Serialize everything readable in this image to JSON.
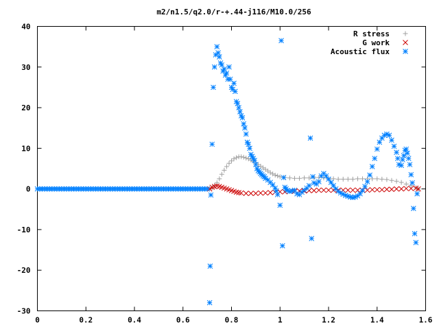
{
  "chart_data": {
    "type": "scatter",
    "title": "m2/n1.5/q2.0/r-+.44-j116/M10.0/256",
    "xlabel": "",
    "ylabel": "",
    "xlim": [
      0,
      1.6
    ],
    "ylim": [
      -30,
      40
    ],
    "x_ticks": [
      0,
      0.2,
      0.4,
      0.6,
      0.8,
      1,
      1.2,
      1.4,
      1.6
    ],
    "x_tick_labels": [
      "0",
      "0.2",
      "0.4",
      "0.6",
      "0.8",
      "1",
      "1.2",
      "1.4",
      "1.6"
    ],
    "y_ticks": [
      -30,
      -20,
      -10,
      0,
      10,
      20,
      30,
      40
    ],
    "y_tick_labels": [
      "-30",
      "-20",
      "-10",
      "0",
      "10",
      "20",
      "30",
      "40"
    ],
    "grid": false,
    "legend_position": "top-right",
    "series": [
      {
        "name": "R stress",
        "marker": "plus",
        "color": "#a0a0a0",
        "points": [
          [
            0.71,
            0
          ],
          [
            0.72,
            0.3
          ],
          [
            0.73,
            0.8
          ],
          [
            0.74,
            1.5
          ],
          [
            0.75,
            2.5
          ],
          [
            0.76,
            3.6
          ],
          [
            0.77,
            4.6
          ],
          [
            0.78,
            5.5
          ],
          [
            0.79,
            6.3
          ],
          [
            0.8,
            6.9
          ],
          [
            0.81,
            7.4
          ],
          [
            0.82,
            7.7
          ],
          [
            0.83,
            7.9
          ],
          [
            0.84,
            7.9
          ],
          [
            0.85,
            7.8
          ],
          [
            0.86,
            7.6
          ],
          [
            0.87,
            7.4
          ],
          [
            0.88,
            7.1
          ],
          [
            0.89,
            6.8
          ],
          [
            0.9,
            6.4
          ],
          [
            0.91,
            6.0
          ],
          [
            0.92,
            5.6
          ],
          [
            0.93,
            5.2
          ],
          [
            0.94,
            4.8
          ],
          [
            0.95,
            4.4
          ],
          [
            0.96,
            4.0
          ],
          [
            0.97,
            3.7
          ],
          [
            0.98,
            3.4
          ],
          [
            0.99,
            3.2
          ],
          [
            1.0,
            3.0
          ],
          [
            1.02,
            2.8
          ],
          [
            1.04,
            2.7
          ],
          [
            1.06,
            2.6
          ],
          [
            1.08,
            2.6
          ],
          [
            1.1,
            2.7
          ],
          [
            1.12,
            2.7
          ],
          [
            1.14,
            2.8
          ],
          [
            1.16,
            2.8
          ],
          [
            1.18,
            2.7
          ],
          [
            1.2,
            2.6
          ],
          [
            1.22,
            2.5
          ],
          [
            1.24,
            2.4
          ],
          [
            1.26,
            2.4
          ],
          [
            1.28,
            2.4
          ],
          [
            1.3,
            2.4
          ],
          [
            1.32,
            2.5
          ],
          [
            1.34,
            2.5
          ],
          [
            1.36,
            2.5
          ],
          [
            1.38,
            2.5
          ],
          [
            1.4,
            2.5
          ],
          [
            1.42,
            2.4
          ],
          [
            1.44,
            2.3
          ],
          [
            1.46,
            2.1
          ],
          [
            1.48,
            1.9
          ],
          [
            1.5,
            1.6
          ],
          [
            1.52,
            1.2
          ],
          [
            1.54,
            0.8
          ],
          [
            1.56,
            0.3
          ],
          [
            1.57,
            0
          ]
        ]
      },
      {
        "name": "G work",
        "marker": "cross",
        "color": "#cc0000",
        "points": [
          [
            0.71,
            0
          ],
          [
            0.72,
            0.4
          ],
          [
            0.73,
            0.6
          ],
          [
            0.74,
            0.7
          ],
          [
            0.75,
            0.6
          ],
          [
            0.76,
            0.4
          ],
          [
            0.77,
            0.2
          ],
          [
            0.78,
            0
          ],
          [
            0.79,
            -0.2
          ],
          [
            0.8,
            -0.4
          ],
          [
            0.81,
            -0.6
          ],
          [
            0.82,
            -0.8
          ],
          [
            0.83,
            -0.9
          ],
          [
            0.84,
            -1.0
          ],
          [
            0.86,
            -1.1
          ],
          [
            0.88,
            -1.1
          ],
          [
            0.9,
            -1.1
          ],
          [
            0.92,
            -1.0
          ],
          [
            0.94,
            -1.0
          ],
          [
            0.96,
            -0.9
          ],
          [
            0.98,
            -0.8
          ],
          [
            1.0,
            -0.7
          ],
          [
            1.02,
            -0.7
          ],
          [
            1.04,
            -0.6
          ],
          [
            1.06,
            -0.6
          ],
          [
            1.08,
            -0.5
          ],
          [
            1.1,
            -0.5
          ],
          [
            1.12,
            -0.4
          ],
          [
            1.14,
            -0.4
          ],
          [
            1.16,
            -0.3
          ],
          [
            1.18,
            -0.3
          ],
          [
            1.2,
            -0.3
          ],
          [
            1.22,
            -0.3
          ],
          [
            1.24,
            -0.3
          ],
          [
            1.26,
            -0.3
          ],
          [
            1.28,
            -0.3
          ],
          [
            1.3,
            -0.3
          ],
          [
            1.32,
            -0.3
          ],
          [
            1.34,
            -0.3
          ],
          [
            1.36,
            -0.3
          ],
          [
            1.38,
            -0.2
          ],
          [
            1.4,
            -0.2
          ],
          [
            1.42,
            -0.2
          ],
          [
            1.44,
            -0.1
          ],
          [
            1.46,
            -0.1
          ],
          [
            1.48,
            0
          ],
          [
            1.5,
            0
          ],
          [
            1.52,
            0.1
          ],
          [
            1.54,
            0.1
          ],
          [
            1.56,
            0.2
          ],
          [
            1.57,
            0
          ]
        ]
      },
      {
        "name": "Acoustic flux",
        "marker": "star",
        "color": "#0080ff",
        "points": [
          [
            0.0,
            0
          ],
          [
            0.01,
            0
          ],
          [
            0.02,
            0
          ],
          [
            0.03,
            0
          ],
          [
            0.04,
            0
          ],
          [
            0.05,
            0
          ],
          [
            0.06,
            0
          ],
          [
            0.07,
            0
          ],
          [
            0.08,
            0
          ],
          [
            0.09,
            0
          ],
          [
            0.1,
            0
          ],
          [
            0.11,
            0
          ],
          [
            0.12,
            0
          ],
          [
            0.13,
            0
          ],
          [
            0.14,
            0
          ],
          [
            0.15,
            0
          ],
          [
            0.16,
            0
          ],
          [
            0.17,
            0
          ],
          [
            0.18,
            0
          ],
          [
            0.19,
            0
          ],
          [
            0.2,
            0
          ],
          [
            0.21,
            0
          ],
          [
            0.22,
            0
          ],
          [
            0.23,
            0
          ],
          [
            0.24,
            0
          ],
          [
            0.25,
            0
          ],
          [
            0.26,
            0
          ],
          [
            0.27,
            0
          ],
          [
            0.28,
            0
          ],
          [
            0.29,
            0
          ],
          [
            0.3,
            0
          ],
          [
            0.31,
            0
          ],
          [
            0.32,
            0
          ],
          [
            0.33,
            0
          ],
          [
            0.34,
            0
          ],
          [
            0.35,
            0
          ],
          [
            0.36,
            0
          ],
          [
            0.37,
            0
          ],
          [
            0.38,
            0
          ],
          [
            0.39,
            0
          ],
          [
            0.4,
            0
          ],
          [
            0.41,
            0
          ],
          [
            0.42,
            0
          ],
          [
            0.43,
            0
          ],
          [
            0.44,
            0
          ],
          [
            0.45,
            0
          ],
          [
            0.46,
            0
          ],
          [
            0.47,
            0
          ],
          [
            0.48,
            0
          ],
          [
            0.49,
            0
          ],
          [
            0.5,
            0
          ],
          [
            0.51,
            0
          ],
          [
            0.52,
            0
          ],
          [
            0.53,
            0
          ],
          [
            0.54,
            0
          ],
          [
            0.55,
            0
          ],
          [
            0.56,
            0
          ],
          [
            0.57,
            0
          ],
          [
            0.58,
            0
          ],
          [
            0.59,
            0
          ],
          [
            0.6,
            0
          ],
          [
            0.61,
            0
          ],
          [
            0.62,
            0
          ],
          [
            0.63,
            0
          ],
          [
            0.64,
            0
          ],
          [
            0.65,
            0
          ],
          [
            0.66,
            0
          ],
          [
            0.67,
            0
          ],
          [
            0.68,
            0
          ],
          [
            0.69,
            0
          ],
          [
            0.7,
            0
          ],
          [
            0.71,
            -28
          ],
          [
            0.712,
            -19
          ],
          [
            0.715,
            -1.5
          ],
          [
            0.72,
            11
          ],
          [
            0.725,
            25
          ],
          [
            0.73,
            30
          ],
          [
            0.735,
            33
          ],
          [
            0.74,
            35
          ],
          [
            0.745,
            33.5
          ],
          [
            0.75,
            32.5
          ],
          [
            0.755,
            31
          ],
          [
            0.76,
            30.5
          ],
          [
            0.765,
            29
          ],
          [
            0.77,
            29.5
          ],
          [
            0.775,
            28
          ],
          [
            0.78,
            28.5
          ],
          [
            0.785,
            27
          ],
          [
            0.79,
            30
          ],
          [
            0.795,
            27
          ],
          [
            0.8,
            25
          ],
          [
            0.805,
            24.5
          ],
          [
            0.81,
            26
          ],
          [
            0.815,
            24
          ],
          [
            0.82,
            21.5
          ],
          [
            0.825,
            21
          ],
          [
            0.83,
            20
          ],
          [
            0.835,
            19
          ],
          [
            0.84,
            18
          ],
          [
            0.845,
            17.5
          ],
          [
            0.85,
            16
          ],
          [
            0.855,
            15
          ],
          [
            0.86,
            13.5
          ],
          [
            0.865,
            11.5
          ],
          [
            0.87,
            11
          ],
          [
            0.875,
            10
          ],
          [
            0.88,
            8.5
          ],
          [
            0.885,
            8
          ],
          [
            0.89,
            7.5
          ],
          [
            0.895,
            7
          ],
          [
            0.9,
            6
          ],
          [
            0.905,
            5
          ],
          [
            0.91,
            4.5
          ],
          [
            0.915,
            4.2
          ],
          [
            0.92,
            3.8
          ],
          [
            0.925,
            3.5
          ],
          [
            0.93,
            3.2
          ],
          [
            0.935,
            3
          ],
          [
            0.94,
            2.6
          ],
          [
            0.95,
            2.2
          ],
          [
            0.96,
            1.6
          ],
          [
            0.97,
            1
          ],
          [
            0.98,
            0.2
          ],
          [
            0.985,
            -0.5
          ],
          [
            0.99,
            -1.4
          ],
          [
            1.0,
            -4
          ],
          [
            1.005,
            36.5
          ],
          [
            1.01,
            -14
          ],
          [
            1.015,
            2.8
          ],
          [
            1.02,
            0.4
          ],
          [
            1.025,
            0
          ],
          [
            1.03,
            -0.4
          ],
          [
            1.04,
            -0.6
          ],
          [
            1.05,
            -0.5
          ],
          [
            1.06,
            -0.3
          ],
          [
            1.07,
            -1.2
          ],
          [
            1.08,
            -1.4
          ],
          [
            1.09,
            -0.8
          ],
          [
            1.1,
            -0.3
          ],
          [
            1.11,
            0.2
          ],
          [
            1.12,
            0.8
          ],
          [
            1.125,
            12.5
          ],
          [
            1.13,
            -12.2
          ],
          [
            1.135,
            3
          ],
          [
            1.14,
            1.5
          ],
          [
            1.15,
            1.2
          ],
          [
            1.16,
            1.8
          ],
          [
            1.17,
            3.2
          ],
          [
            1.18,
            3.8
          ],
          [
            1.19,
            3.2
          ],
          [
            1.2,
            2.4
          ],
          [
            1.21,
            1.6
          ],
          [
            1.22,
            0.8
          ],
          [
            1.23,
            0
          ],
          [
            1.24,
            -0.6
          ],
          [
            1.25,
            -1
          ],
          [
            1.26,
            -1.3
          ],
          [
            1.27,
            -1.6
          ],
          [
            1.28,
            -1.8
          ],
          [
            1.29,
            -2
          ],
          [
            1.3,
            -2.1
          ],
          [
            1.31,
            -2
          ],
          [
            1.32,
            -1.7
          ],
          [
            1.33,
            -1.2
          ],
          [
            1.34,
            -0.4
          ],
          [
            1.35,
            0.6
          ],
          [
            1.36,
            1.8
          ],
          [
            1.37,
            3.4
          ],
          [
            1.38,
            5.5
          ],
          [
            1.39,
            7.5
          ],
          [
            1.4,
            9.8
          ],
          [
            1.41,
            11.5
          ],
          [
            1.42,
            12.5
          ],
          [
            1.43,
            13.2
          ],
          [
            1.44,
            13.5
          ],
          [
            1.45,
            13.2
          ],
          [
            1.46,
            12
          ],
          [
            1.47,
            10.5
          ],
          [
            1.48,
            9
          ],
          [
            1.485,
            7.5
          ],
          [
            1.49,
            6
          ],
          [
            1.5,
            5.8
          ],
          [
            1.505,
            7.2
          ],
          [
            1.51,
            8.2
          ],
          [
            1.515,
            9.5
          ],
          [
            1.52,
            9.8
          ],
          [
            1.525,
            8.8
          ],
          [
            1.53,
            7.5
          ],
          [
            1.535,
            6
          ],
          [
            1.54,
            3.5
          ],
          [
            1.545,
            1.5
          ],
          [
            1.55,
            -4.8
          ],
          [
            1.555,
            -11
          ],
          [
            1.56,
            -13.2
          ],
          [
            1.565,
            -1.2
          ]
        ]
      }
    ]
  }
}
